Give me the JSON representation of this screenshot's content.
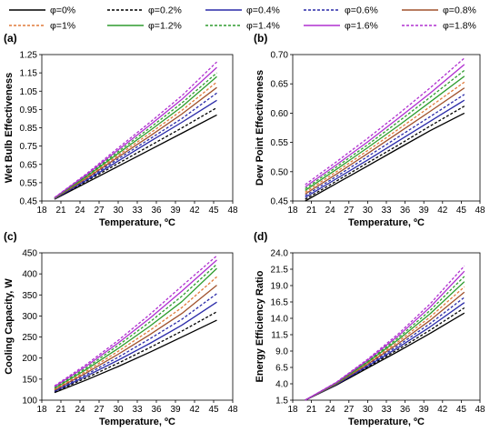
{
  "legend": {
    "items": [
      {
        "label": "φ=0%",
        "color": "#000000",
        "dash": "solid"
      },
      {
        "label": "φ=0.2%",
        "color": "#000000",
        "dash": "dashed"
      },
      {
        "label": "φ=0.4%",
        "color": "#2a2aa8",
        "dash": "solid"
      },
      {
        "label": "φ=0.6%",
        "color": "#2a2aa8",
        "dash": "dashed"
      },
      {
        "label": "φ=0.8%",
        "color": "#a0522d",
        "dash": "solid"
      },
      {
        "label": "φ=1%",
        "color": "#e07a3a",
        "dash": "dashed"
      },
      {
        "label": "φ=1.2%",
        "color": "#2e9c2e",
        "dash": "solid"
      },
      {
        "label": "φ=1.4%",
        "color": "#2e9c2e",
        "dash": "dashed"
      },
      {
        "label": "φ=1.6%",
        "color": "#b030d0",
        "dash": "solid"
      },
      {
        "label": "φ=1.8%",
        "color": "#b030d0",
        "dash": "dashed"
      }
    ]
  },
  "chart_data": [
    {
      "panel_label": "(a)",
      "type": "line",
      "xlabel": "Temperature, ºC",
      "ylabel": "Wet Bulb Effectiveness",
      "xlim": [
        18,
        48
      ],
      "xticks": [
        "18",
        "21",
        "24",
        "27",
        "30",
        "33",
        "36",
        "39",
        "42",
        "45",
        "48"
      ],
      "ylim": [
        0.45,
        1.25
      ],
      "yticks": [
        "0.45",
        "0.55",
        "0.65",
        "0.75",
        "0.85",
        "0.95",
        "1.05",
        "1.15",
        "1.25"
      ],
      "x": [
        20,
        25,
        30,
        35,
        40,
        45.5
      ],
      "series": [
        {
          "name": "φ=0%",
          "values": [
            0.46,
            0.55,
            0.64,
            0.73,
            0.82,
            0.92
          ]
        },
        {
          "name": "φ=0.2%",
          "values": [
            0.461,
            0.558,
            0.655,
            0.752,
            0.849,
            0.96
          ]
        },
        {
          "name": "φ=0.4%",
          "values": [
            0.462,
            0.563,
            0.668,
            0.775,
            0.88,
            1.0
          ]
        },
        {
          "name": "φ=0.6%",
          "values": [
            0.463,
            0.568,
            0.68,
            0.79,
            0.9,
            1.04
          ]
        },
        {
          "name": "φ=0.8%",
          "values": [
            0.464,
            0.573,
            0.69,
            0.805,
            0.925,
            1.07
          ]
        },
        {
          "name": "φ=1%",
          "values": [
            0.465,
            0.578,
            0.7,
            0.82,
            0.945,
            1.1
          ]
        },
        {
          "name": "φ=1.2%",
          "values": [
            0.466,
            0.583,
            0.71,
            0.835,
            0.965,
            1.13
          ]
        },
        {
          "name": "φ=1.4%",
          "values": [
            0.467,
            0.588,
            0.72,
            0.85,
            0.985,
            1.15
          ]
        },
        {
          "name": "φ=1.6%",
          "values": [
            0.468,
            0.593,
            0.73,
            0.865,
            1.005,
            1.18
          ]
        },
        {
          "name": "φ=1.8%",
          "values": [
            0.469,
            0.598,
            0.74,
            0.88,
            1.025,
            1.21
          ]
        }
      ]
    },
    {
      "panel_label": "(b)",
      "type": "line",
      "xlabel": "Temperature, ºC",
      "ylabel": "Dew Point Effectiveness",
      "xlim": [
        18,
        48
      ],
      "xticks": [
        "18",
        "21",
        "24",
        "27",
        "30",
        "33",
        "36",
        "39",
        "42",
        "45",
        "48"
      ],
      "ylim": [
        0.45,
        0.7
      ],
      "yticks": [
        "0.45",
        "0.50",
        "0.55",
        "0.60",
        "0.65",
        "0.70"
      ],
      "x": [
        20,
        25,
        30,
        35,
        40,
        45.5
      ],
      "series": [
        {
          "name": "φ=0%",
          "values": [
            0.45,
            0.48,
            0.51,
            0.54,
            0.57,
            0.6
          ]
        },
        {
          "name": "φ=0.2%",
          "values": [
            0.453,
            0.484,
            0.515,
            0.546,
            0.578,
            0.612
          ]
        },
        {
          "name": "φ=0.4%",
          "values": [
            0.456,
            0.488,
            0.52,
            0.553,
            0.586,
            0.622
          ]
        },
        {
          "name": "φ=0.6%",
          "values": [
            0.459,
            0.492,
            0.526,
            0.56,
            0.594,
            0.632
          ]
        },
        {
          "name": "φ=0.8%",
          "values": [
            0.462,
            0.496,
            0.531,
            0.567,
            0.603,
            0.643
          ]
        },
        {
          "name": "φ=1%",
          "values": [
            0.465,
            0.5,
            0.536,
            0.573,
            0.611,
            0.653
          ]
        },
        {
          "name": "φ=1.2%",
          "values": [
            0.468,
            0.504,
            0.541,
            0.579,
            0.619,
            0.663
          ]
        },
        {
          "name": "φ=1.4%",
          "values": [
            0.471,
            0.508,
            0.546,
            0.586,
            0.627,
            0.673
          ]
        },
        {
          "name": "φ=1.6%",
          "values": [
            0.474,
            0.512,
            0.551,
            0.592,
            0.634,
            0.683
          ]
        },
        {
          "name": "φ=1.8%",
          "values": [
            0.478,
            0.517,
            0.557,
            0.599,
            0.643,
            0.694
          ]
        }
      ]
    },
    {
      "panel_label": "(c)",
      "type": "line",
      "xlabel": "Temperature, ºC",
      "ylabel": "Cooling Capacity, W",
      "xlim": [
        18,
        48
      ],
      "xticks": [
        "18",
        "21",
        "24",
        "27",
        "30",
        "33",
        "36",
        "39",
        "42",
        "45",
        "48"
      ],
      "ylim": [
        100,
        450
      ],
      "yticks": [
        "100",
        "150",
        "200",
        "250",
        "300",
        "350",
        "400",
        "450"
      ],
      "x": [
        20,
        25,
        30,
        35,
        40,
        45.5
      ],
      "series": [
        {
          "name": "φ=0%",
          "values": [
            118,
            148,
            180,
            214,
            250,
            290
          ]
        },
        {
          "name": "φ=0.2%",
          "values": [
            120,
            153,
            188,
            225,
            264,
            310
          ]
        },
        {
          "name": "φ=0.4%",
          "values": [
            121,
            157,
            195,
            235,
            278,
            333
          ]
        },
        {
          "name": "φ=0.6%",
          "values": [
            123,
            161,
            202,
            246,
            292,
            353
          ]
        },
        {
          "name": "φ=0.8%",
          "values": [
            124,
            165,
            209,
            256,
            306,
            373
          ]
        },
        {
          "name": "φ=1%",
          "values": [
            126,
            169,
            216,
            266,
            320,
            393
          ]
        },
        {
          "name": "φ=1.2%",
          "values": [
            128,
            173,
            223,
            276,
            334,
            413
          ]
        },
        {
          "name": "φ=1.4%",
          "values": [
            130,
            177,
            230,
            286,
            347,
            423
          ]
        },
        {
          "name": "φ=1.6%",
          "values": [
            132,
            181,
            236,
            295,
            359,
            433
          ]
        },
        {
          "name": "φ=1.8%",
          "values": [
            134,
            185,
            242,
            304,
            371,
            443
          ]
        }
      ]
    },
    {
      "panel_label": "(d)",
      "type": "line",
      "xlabel": "Temperature, ºC",
      "ylabel": "Energy Efficiency Ratio",
      "xlim": [
        18,
        48
      ],
      "xticks": [
        "18",
        "21",
        "24",
        "27",
        "30",
        "33",
        "36",
        "39",
        "42",
        "45",
        "48"
      ],
      "ylim": [
        1.5,
        24.0
      ],
      "yticks": [
        "1.5",
        "4.0",
        "6.5",
        "9.0",
        "11.5",
        "14.0",
        "16.5",
        "19.0",
        "21.5",
        "24.0"
      ],
      "x": [
        20,
        25,
        30,
        35,
        40,
        45.5
      ],
      "series": [
        {
          "name": "φ=0%",
          "values": [
            1.5,
            3.8,
            6.4,
            9.0,
            11.7,
            14.8
          ]
        },
        {
          "name": "φ=0.2%",
          "values": [
            1.5,
            3.85,
            6.55,
            9.3,
            12.2,
            15.6
          ]
        },
        {
          "name": "φ=0.4%",
          "values": [
            1.5,
            3.9,
            6.7,
            9.6,
            12.7,
            16.4
          ]
        },
        {
          "name": "φ=0.6%",
          "values": [
            1.5,
            3.95,
            6.85,
            9.9,
            13.2,
            17.2
          ]
        },
        {
          "name": "φ=0.8%",
          "values": [
            1.5,
            4.0,
            7.0,
            10.2,
            13.7,
            18.0
          ]
        },
        {
          "name": "φ=1%",
          "values": [
            1.5,
            4.05,
            7.15,
            10.5,
            14.2,
            18.8
          ]
        },
        {
          "name": "φ=1.2%",
          "values": [
            1.5,
            4.1,
            7.3,
            10.8,
            14.7,
            19.6
          ]
        },
        {
          "name": "φ=1.4%",
          "values": [
            1.5,
            4.15,
            7.45,
            11.1,
            15.2,
            20.4
          ]
        },
        {
          "name": "φ=1.6%",
          "values": [
            1.5,
            4.2,
            7.6,
            11.4,
            15.7,
            21.2
          ]
        },
        {
          "name": "φ=1.8%",
          "values": [
            1.5,
            4.25,
            7.75,
            11.7,
            16.2,
            22.0
          ]
        }
      ]
    }
  ]
}
